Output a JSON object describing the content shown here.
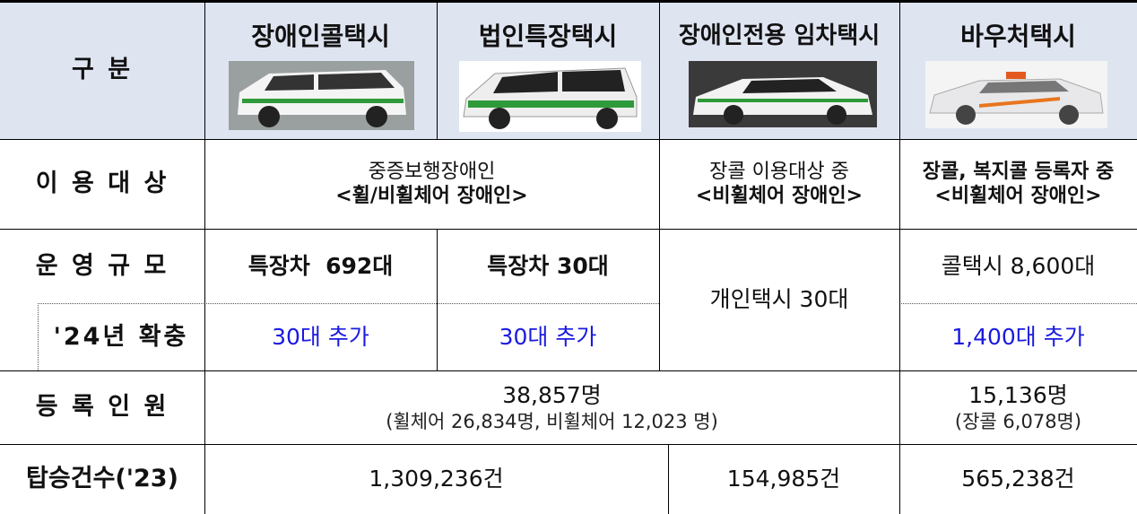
{
  "header": {
    "label": "구 분",
    "columns": [
      "장애인콜택시",
      "법인특장택시",
      "장애인전용 임차택시",
      "바우처택시"
    ]
  },
  "target": {
    "label": "이 용 대 상",
    "call_taxi": [
      "중증보행장애인",
      "<휠/비휠체어 장애인>"
    ],
    "rental_taxi": [
      "장콜 이용대상 중",
      "<비휠체어 장애인>"
    ],
    "voucher_taxi": [
      "장콜, 복지콜 등록자 중",
      "<비휠체어 장애인>"
    ]
  },
  "scale": {
    "label": "운 영 규 모",
    "call_taxi": "특장차  692대",
    "corporate_taxi": "특장차 30대",
    "rental_taxi": "개인택시 30대",
    "voucher_taxi": "콜택시 8,600대"
  },
  "expansion": {
    "label": "'24년 확충",
    "call_taxi": "30대 추가",
    "corporate_taxi": "30대 추가",
    "voucher_taxi": "1,400대 추가"
  },
  "registered": {
    "label": "등 록 인 원",
    "call_rental": [
      "38,857명",
      "(휠체어 26,834명, 비휠체어 12,023 명)"
    ],
    "voucher_taxi": [
      "15,136명",
      "(장콜 6,078명)"
    ]
  },
  "rides": {
    "label": "탑승건수('23)",
    "call_corporate": "1,309,236건",
    "rental_taxi": "154,985건",
    "voucher_taxi": "565,238건"
  }
}
